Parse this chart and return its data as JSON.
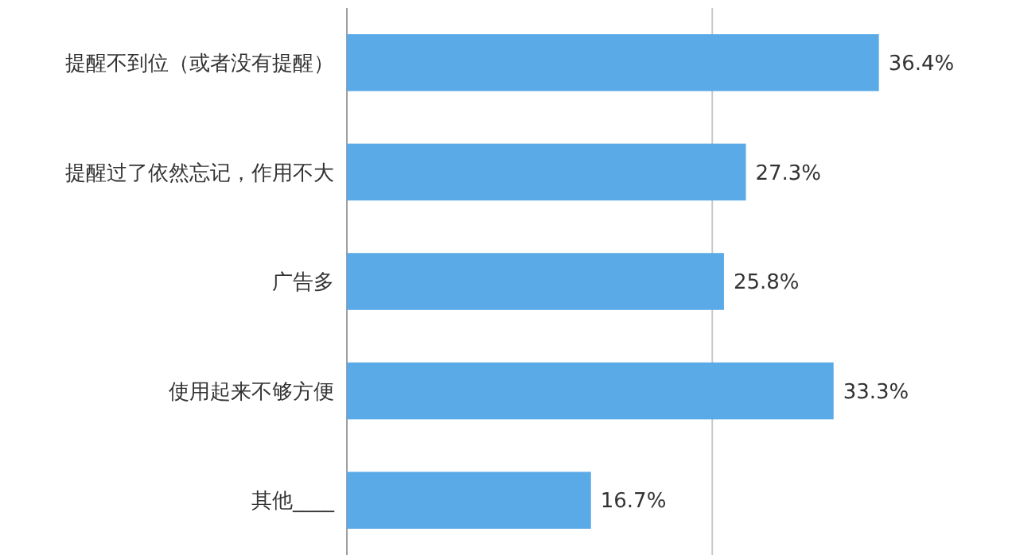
{
  "chart_data": {
    "type": "bar",
    "orientation": "horizontal",
    "categories": [
      "提醒不到位（或者没有提醒）",
      "提醒过了依然忘记，作用不大",
      "广告多",
      "使用起来不够方便",
      "其他____"
    ],
    "values": [
      36.4,
      27.3,
      25.8,
      33.3,
      16.7
    ],
    "value_labels": [
      "36.4%",
      "27.3%",
      "25.8%",
      "33.3%",
      "16.7%"
    ],
    "color": "#5aaae8",
    "ref_lines": [
      {
        "axis": "x",
        "value": 25,
        "color": "#c8c8c8"
      }
    ]
  }
}
